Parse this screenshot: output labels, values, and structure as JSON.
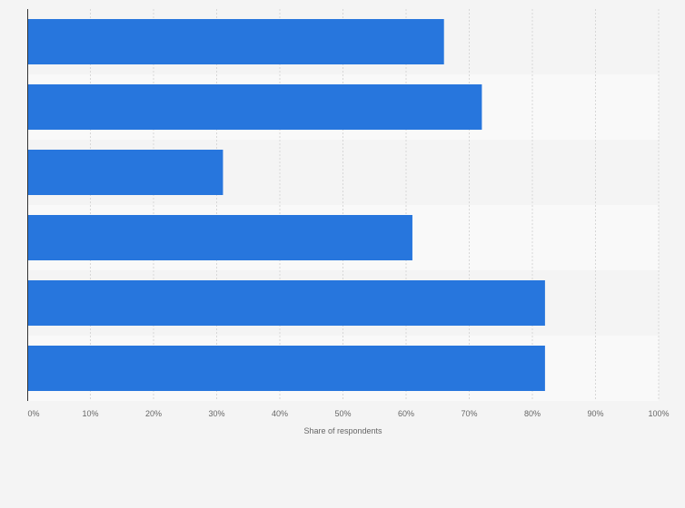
{
  "chart_data": {
    "type": "bar",
    "orientation": "horizontal",
    "categories": [
      "",
      "",
      "",
      "",
      "",
      ""
    ],
    "values": [
      66,
      72,
      31,
      61,
      82,
      82
    ],
    "xlabel": "Share of respondents",
    "ylabel": "",
    "xlim": [
      0,
      100
    ],
    "x_ticks": [
      "0%",
      "10%",
      "20%",
      "30%",
      "40%",
      "50%",
      "60%",
      "70%",
      "80%",
      "90%",
      "100%"
    ],
    "grid": true,
    "legend": "none",
    "bar_color": "#2776dd",
    "band_colors": [
      "#f4f4f4",
      "#f9f9f9"
    ]
  }
}
